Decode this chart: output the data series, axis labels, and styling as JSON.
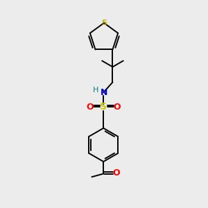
{
  "background_color": "#ececec",
  "atom_colors": {
    "S_thiophene": "#b8b800",
    "S_sulfonyl": "#cccc00",
    "N": "#0000cc",
    "O": "#ff0000",
    "C": "#000000",
    "H": "#008080"
  },
  "figure_size": [
    3.0,
    3.0
  ],
  "dpi": 100,
  "lw": 1.4
}
